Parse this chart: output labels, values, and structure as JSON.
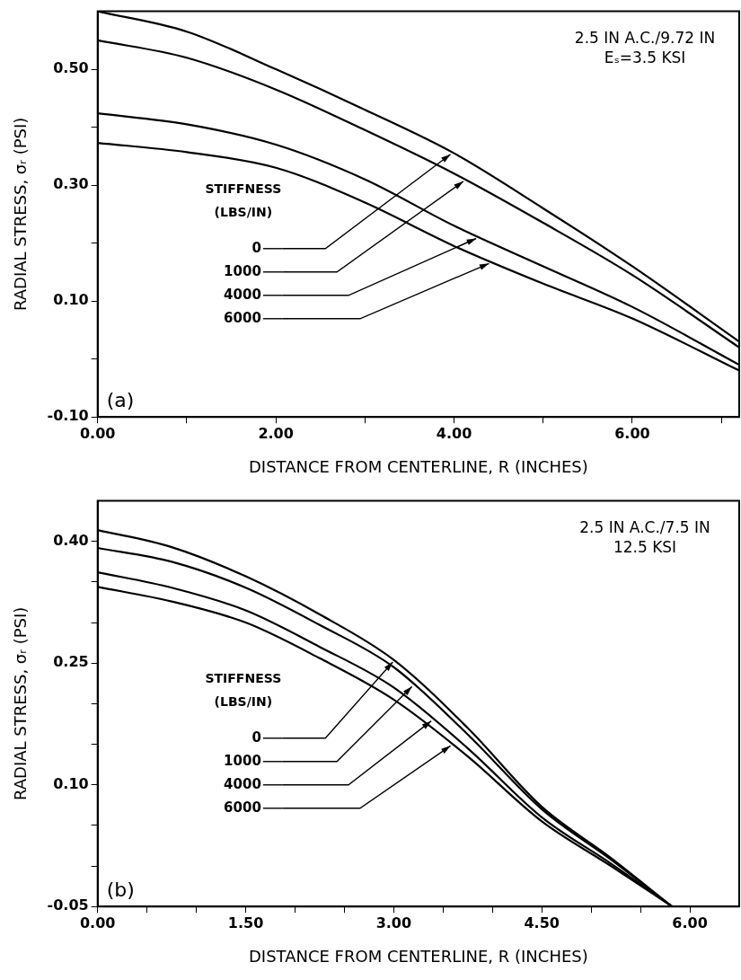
{
  "chart_data": [
    {
      "type": "line",
      "xlabel": "DISTANCE FROM CENTERLINE, R (INCHES)",
      "ylabel": "RADIAL STRESS, σᵣ (PSI)",
      "legend_title": "STIFFNESS (LBS/IN)",
      "annotations": [
        "2.5 IN A.C./9.72 IN",
        "Eₛ=3.5 KSI",
        "(a)"
      ],
      "x": [
        0,
        1,
        2,
        3,
        4,
        5,
        6,
        7.2
      ],
      "series": [
        {
          "name": "0",
          "color": "#000000",
          "values": [
            0.6,
            0.565,
            0.5,
            0.43,
            0.355,
            0.26,
            0.16,
            0.03
          ]
        },
        {
          "name": "1000",
          "color": "#000000",
          "values": [
            0.55,
            0.52,
            0.465,
            0.395,
            0.32,
            0.235,
            0.145,
            0.02
          ]
        },
        {
          "name": "4000",
          "color": "#000000",
          "values": [
            0.424,
            0.405,
            0.37,
            0.31,
            0.23,
            0.16,
            0.09,
            -0.01
          ]
        },
        {
          "name": "6000",
          "color": "#000000",
          "values": [
            0.373,
            0.357,
            0.33,
            0.27,
            0.195,
            0.13,
            0.07,
            -0.02
          ]
        }
      ],
      "legend": "left",
      "xlim": [
        0,
        7.2
      ],
      "xticks": [
        {
          "value": 0,
          "label": "0.00"
        },
        {
          "value": 1,
          "label": null
        },
        {
          "value": 2,
          "label": "2.00"
        },
        {
          "value": 3,
          "label": null
        },
        {
          "value": 4,
          "label": "4.00"
        },
        {
          "value": 5,
          "label": null
        },
        {
          "value": 6,
          "label": "6.00"
        },
        {
          "value": 7,
          "label": null
        }
      ],
      "ylim": [
        -0.1,
        0.6
      ],
      "yticks": [
        {
          "value": -0.1,
          "label": "-0.10"
        },
        {
          "value": 0,
          "label": null
        },
        {
          "value": 0.1,
          "label": "0.10"
        },
        {
          "value": 0.2,
          "label": null
        },
        {
          "value": 0.3,
          "label": "0.30"
        },
        {
          "value": 0.4,
          "label": null
        },
        {
          "value": 0.5,
          "label": "0.50"
        }
      ],
      "grid": false,
      "marker": "none",
      "line_style": "solid"
    },
    {
      "type": "line",
      "xlabel": "DISTANCE FROM CENTERLINE, R (INCHES)",
      "ylabel": "RADIAL STRESS, σᵣ (PSI)",
      "legend_title": "STIFFNESS (LBS/IN)",
      "annotations": [
        "2.5 IN A.C./7.5 IN",
        "12.5 KSI",
        "(b)"
      ],
      "x": [
        0,
        0.75,
        1.5,
        2.25,
        3,
        3.75,
        4.5,
        5.2,
        5.82
      ],
      "series": [
        {
          "name": "0",
          "color": "#000000",
          "values": [
            0.414,
            0.393,
            0.357,
            0.31,
            0.254,
            0.17,
            0.073,
            0.01,
            -0.05
          ]
        },
        {
          "name": "1000",
          "color": "#000000",
          "values": [
            0.392,
            0.375,
            0.343,
            0.297,
            0.245,
            0.162,
            0.07,
            0.008,
            -0.05
          ]
        },
        {
          "name": "4000",
          "color": "#000000",
          "values": [
            0.362,
            0.343,
            0.315,
            0.27,
            0.22,
            0.145,
            0.06,
            0.003,
            -0.05
          ]
        },
        {
          "name": "6000",
          "color": "#000000",
          "values": [
            0.344,
            0.326,
            0.3,
            0.256,
            0.205,
            0.135,
            0.055,
            0,
            -0.05
          ]
        }
      ],
      "legend": "left",
      "xlim": [
        0,
        6.5
      ],
      "xticks": [
        {
          "value": 0,
          "label": "0.00"
        },
        {
          "value": 0.5,
          "label": null
        },
        {
          "value": 1,
          "label": null
        },
        {
          "value": 1.5,
          "label": "1.50"
        },
        {
          "value": 2,
          "label": null
        },
        {
          "value": 2.5,
          "label": null
        },
        {
          "value": 3,
          "label": "3.00"
        },
        {
          "value": 3.5,
          "label": null
        },
        {
          "value": 4,
          "label": null
        },
        {
          "value": 4.5,
          "label": "4.50"
        },
        {
          "value": 5,
          "label": null
        },
        {
          "value": 5.5,
          "label": null
        },
        {
          "value": 6,
          "label": "6.00"
        }
      ],
      "ylim": [
        -0.05,
        0.45
      ],
      "yticks": [
        {
          "value": -0.05,
          "label": "-0.05"
        },
        {
          "value": 0,
          "label": null
        },
        {
          "value": 0.05,
          "label": null
        },
        {
          "value": 0.1,
          "label": "0.10"
        },
        {
          "value": 0.15,
          "label": null
        },
        {
          "value": 0.2,
          "label": null
        },
        {
          "value": 0.25,
          "label": "0.25"
        },
        {
          "value": 0.3,
          "label": null
        },
        {
          "value": 0.35,
          "label": null
        },
        {
          "value": 0.4,
          "label": "0.40"
        }
      ],
      "grid": false,
      "marker": "none",
      "line_style": "solid"
    }
  ]
}
